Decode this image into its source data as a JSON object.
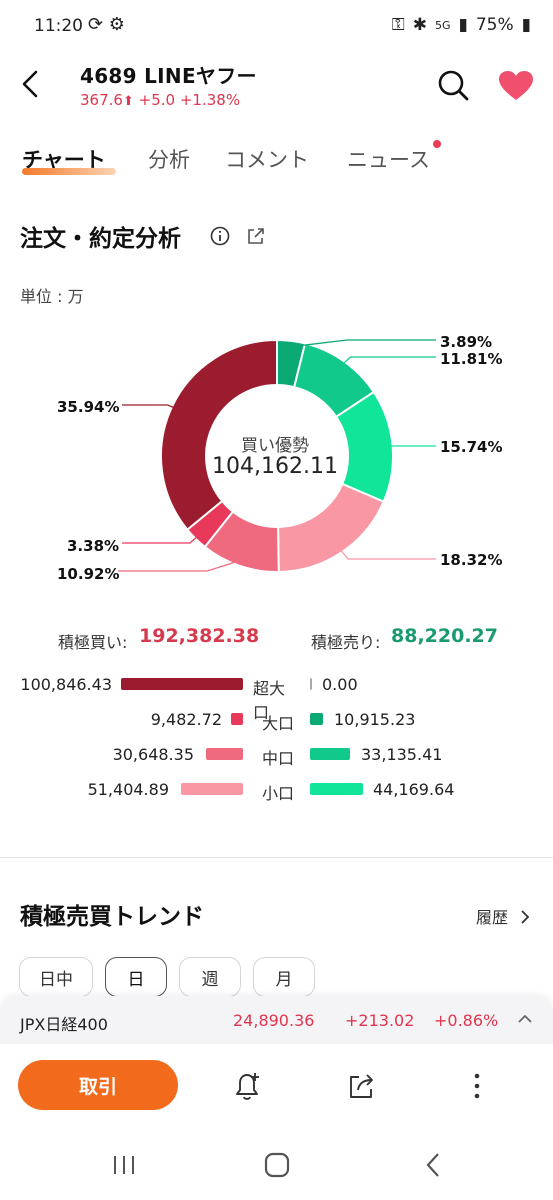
{
  "status_bar": {
    "time": "11:20",
    "battery": "75%",
    "network": "5G"
  },
  "header": {
    "code_name": "4689  LINEヤフー",
    "price": "367.6",
    "arrow": "⬆",
    "change": "+5.0",
    "change_pct": "+1.38%"
  },
  "tabs": [
    {
      "label": "チャート",
      "active": true
    },
    {
      "label": "分析",
      "active": false
    },
    {
      "label": "コメント",
      "active": false
    },
    {
      "label": "ニュース",
      "active": false,
      "dot": true
    }
  ],
  "order_analysis": {
    "title": "注文・約定分析",
    "unit": "単位 : 万",
    "center_label": "買い優勢",
    "center_value": "104,162.11",
    "total_buy_label": "積極買い:",
    "total_buy_value": "192,382.38",
    "total_sell_label": "積極売り:",
    "total_sell_value": "88,220.27",
    "breakdown": [
      {
        "category": "超大口",
        "buy": "100,846.43",
        "sell": "0.00"
      },
      {
        "category": "大口",
        "buy": "9,482.72",
        "sell": "10,915.23"
      },
      {
        "category": "中口",
        "buy": "30,648.35",
        "sell": "33,135.41"
      },
      {
        "category": "小口",
        "buy": "51,404.89",
        "sell": "44,169.64"
      }
    ]
  },
  "chart_data": {
    "type": "pie",
    "title": "",
    "unit": "万",
    "slices": [
      {
        "label": "売り 大口",
        "value": 3.89,
        "display": "3.89%",
        "color": "#0aa872"
      },
      {
        "label": "売り 中口",
        "value": 11.81,
        "display": "11.81%",
        "color": "#12c98c"
      },
      {
        "label": "売り 小口",
        "value": 15.74,
        "display": "15.74%",
        "color": "#10e59a"
      },
      {
        "label": "買い 小口",
        "value": 18.32,
        "display": "18.32%",
        "color": "#fa97a4"
      },
      {
        "label": "買い 中口",
        "value": 10.92,
        "display": "10.92%",
        "color": "#ef6a7e"
      },
      {
        "label": "買い 大口",
        "value": 3.38,
        "display": "3.38%",
        "color": "#e9395a"
      },
      {
        "label": "買い 超大口",
        "value": 35.94,
        "display": "35.94%",
        "color": "#9a1c2e"
      }
    ]
  },
  "trend": {
    "title": "積極売買トレンド",
    "history": "履歴",
    "periods": [
      {
        "label": "日中",
        "active": false
      },
      {
        "label": "日",
        "active": true
      },
      {
        "label": "週",
        "active": false
      },
      {
        "label": "月",
        "active": false
      }
    ]
  },
  "ticker": {
    "name": "JPX日経400",
    "price": "24,890.36",
    "change": "+213.02",
    "change_pct": "+0.86%"
  },
  "bottom": {
    "trade_label": "取引"
  },
  "colors": {
    "accent": "#f26a1c",
    "up": "#e0364f",
    "buy_total": "#d63a4c",
    "sell_total": "#1a9a70",
    "favorite": "#f0506e",
    "buy_xl": "#9a1c2e",
    "buy_l": "#e9395a",
    "buy_m": "#ef6a7e",
    "buy_s": "#fa97a4",
    "sell_l": "#0aa872",
    "sell_m": "#12c98c",
    "sell_s": "#10e59a"
  },
  "icons": [
    "back-arrow-icon",
    "search-icon",
    "heart-icon",
    "info-icon",
    "share-icon",
    "bell-plus-icon",
    "more-icon",
    "chevron-right-icon",
    "chevron-up-icon"
  ]
}
